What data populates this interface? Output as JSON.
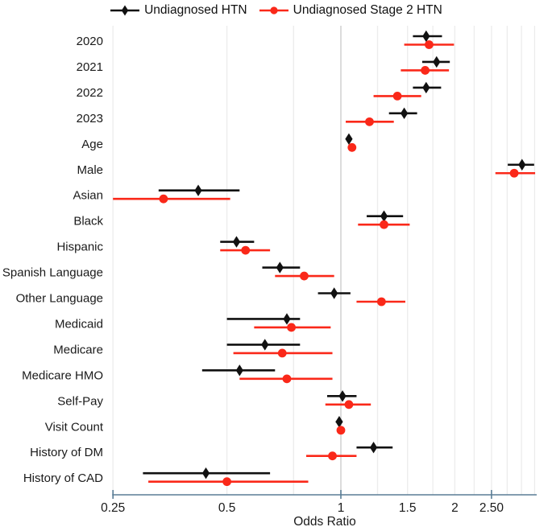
{
  "legend": {
    "items": [
      {
        "label": "Undiagnosed HTN",
        "marker": "diamond",
        "color": "#111111"
      },
      {
        "label": "Undiagnosed Stage 2 HTN",
        "marker": "circle",
        "color": "#fa2819"
      }
    ]
  },
  "chart_data": {
    "type": "scatter",
    "chart_kind": "forest-plot",
    "title": "",
    "xlabel": "Odds Ratio",
    "x_scale": "log",
    "x_range": [
      0.25,
      3.3
    ],
    "gridline_step": 0.25,
    "grid": true,
    "legend_position": "top-center",
    "x_ticks": [
      {
        "v": 0.25,
        "label": "0.25"
      },
      {
        "v": 0.5,
        "label": "0.5"
      },
      {
        "v": 1,
        "label": "1"
      },
      {
        "v": 1.5,
        "label": "1.5"
      },
      {
        "v": 2,
        "label": "2"
      },
      {
        "v": 2.5,
        "label": "2.50"
      }
    ],
    "axis_tick_marks": [
      0.25,
      1,
      2.5
    ],
    "categories": [
      "2020",
      "2021",
      "2022",
      "2023",
      "Age",
      "Male",
      "Asian",
      "Black",
      "Hispanic",
      "Spanish Language",
      "Other Language",
      "Medicaid",
      "Medicare",
      "Medicare HMO",
      "Self-Pay",
      "Visit Count",
      "History of DM",
      "History of CAD"
    ],
    "series": [
      {
        "name": "Undiagnosed HTN",
        "marker": "diamond",
        "color": "#111111",
        "values": [
          {
            "or": 1.68,
            "lo": 1.55,
            "hi": 1.85
          },
          {
            "or": 1.79,
            "lo": 1.64,
            "hi": 1.94
          },
          {
            "or": 1.68,
            "lo": 1.55,
            "hi": 1.84
          },
          {
            "or": 1.47,
            "lo": 1.34,
            "hi": 1.59
          },
          {
            "or": 1.05,
            "lo": 1.04,
            "hi": 1.07
          },
          {
            "or": 3.01,
            "lo": 2.76,
            "hi": 3.24
          },
          {
            "or": 0.42,
            "lo": 0.33,
            "hi": 0.54
          },
          {
            "or": 1.3,
            "lo": 1.17,
            "hi": 1.46
          },
          {
            "or": 0.53,
            "lo": 0.48,
            "hi": 0.59
          },
          {
            "or": 0.69,
            "lo": 0.62,
            "hi": 0.78
          },
          {
            "or": 0.96,
            "lo": 0.87,
            "hi": 1.06
          },
          {
            "or": 0.72,
            "lo": 0.5,
            "hi": 0.78
          },
          {
            "or": 0.63,
            "lo": 0.5,
            "hi": 0.78
          },
          {
            "or": 0.54,
            "lo": 0.43,
            "hi": 0.67
          },
          {
            "or": 1.01,
            "lo": 0.92,
            "hi": 1.1
          },
          {
            "or": 0.99,
            "lo": 0.97,
            "hi": 1.01
          },
          {
            "or": 1.22,
            "lo": 1.1,
            "hi": 1.37
          },
          {
            "or": 0.44,
            "lo": 0.3,
            "hi": 0.65
          }
        ]
      },
      {
        "name": "Undiagnosed Stage 2 HTN",
        "marker": "circle",
        "color": "#fa2819",
        "values": [
          {
            "or": 1.71,
            "lo": 1.47,
            "hi": 1.99
          },
          {
            "or": 1.67,
            "lo": 1.44,
            "hi": 1.93
          },
          {
            "or": 1.41,
            "lo": 1.22,
            "hi": 1.63
          },
          {
            "or": 1.19,
            "lo": 1.03,
            "hi": 1.38
          },
          {
            "or": 1.07,
            "lo": 1.05,
            "hi": 1.09
          },
          {
            "or": 2.87,
            "lo": 2.56,
            "hi": 3.26
          },
          {
            "or": 0.34,
            "lo": 0.25,
            "hi": 0.51
          },
          {
            "or": 1.3,
            "lo": 1.11,
            "hi": 1.52
          },
          {
            "or": 0.56,
            "lo": 0.48,
            "hi": 0.65
          },
          {
            "or": 0.8,
            "lo": 0.67,
            "hi": 0.96
          },
          {
            "or": 1.28,
            "lo": 1.1,
            "hi": 1.48
          },
          {
            "or": 0.74,
            "lo": 0.59,
            "hi": 0.94
          },
          {
            "or": 0.7,
            "lo": 0.52,
            "hi": 0.95
          },
          {
            "or": 0.72,
            "lo": 0.54,
            "hi": 0.95
          },
          {
            "or": 1.05,
            "lo": 0.91,
            "hi": 1.2
          },
          {
            "or": 1.0,
            "lo": 0.98,
            "hi": 1.02
          },
          {
            "or": 0.95,
            "lo": 0.81,
            "hi": 1.1
          },
          {
            "or": 0.5,
            "lo": 0.31,
            "hi": 0.82
          }
        ]
      }
    ],
    "colors": {
      "grid": "#ececec",
      "grid_reference_line": "#c9c9c9",
      "axis": "#5a7d96",
      "htn": "#111111",
      "stage2": "#fa2819"
    }
  }
}
